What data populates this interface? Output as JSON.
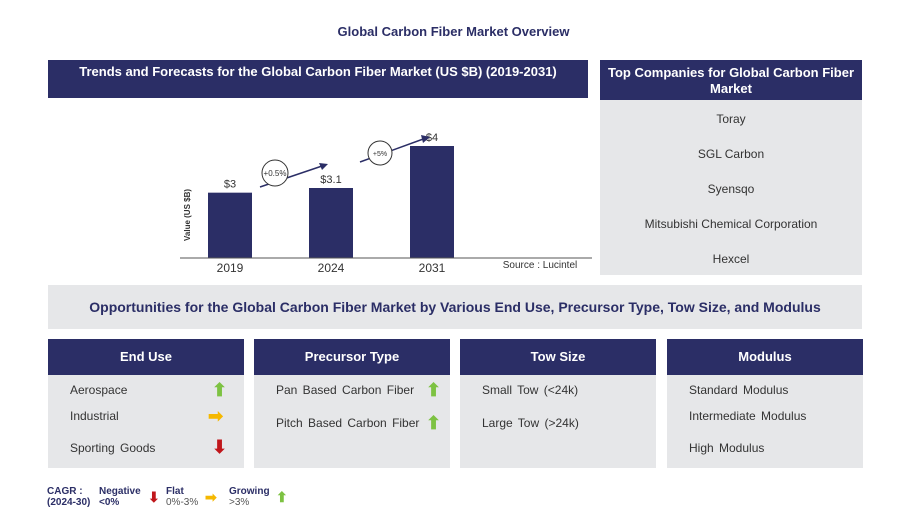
{
  "title": "Global Carbon Fiber Market Overview",
  "chart_header": "Trends and Forecasts for the Global Carbon Fiber Market (US $B) (2019-2031)",
  "chart_data": {
    "type": "bar",
    "categories": [
      "2019",
      "2024",
      "2031"
    ],
    "values": [
      3,
      3.1,
      4
    ],
    "data_labels": [
      "$3",
      "$3.1",
      "$4"
    ],
    "ylabel": "Value (US $B)",
    "ylim": [
      1.6,
      4.0
    ],
    "annotations": [
      "+0.5%",
      "+5%"
    ],
    "source": "Source : Lucintel"
  },
  "companies": {
    "header": "Top Companies for Global Carbon Fiber Market",
    "items": [
      "Toray",
      "SGL Carbon",
      "Syensqo",
      "Mitsubishi Chemical Corporation",
      "Hexcel"
    ]
  },
  "opportunities": "Opportunities for the Global Carbon Fiber Market by Various End Use, Precursor Type, Tow Size, and Modulus",
  "columns": [
    {
      "title": "End Use",
      "items": [
        {
          "label": "Aerospace",
          "trend": "growing"
        },
        {
          "label": "Industrial",
          "trend": "flat"
        },
        {
          "label": "Sporting Goods",
          "trend": "negative"
        }
      ]
    },
    {
      "title": "Precursor Type",
      "items": [
        {
          "label": "Pan Based Carbon Fiber",
          "trend": "growing"
        },
        {
          "label": "Pitch Based Carbon Fiber",
          "trend": "growing"
        }
      ]
    },
    {
      "title": "Tow Size",
      "items": [
        {
          "label": "Small Tow (<24k)"
        },
        {
          "label": "Large Tow (>24k)"
        }
      ]
    },
    {
      "title": "Modulus",
      "items": [
        {
          "label": "Standard Modulus"
        },
        {
          "label": "Intermediate Modulus"
        },
        {
          "label": "High Modulus"
        }
      ]
    }
  ],
  "legend": {
    "cagr": "CAGR :",
    "period": "(2024-30)",
    "negative": "Negative",
    "negative_range": "<0%",
    "flat": "Flat",
    "flat_range": "0%-3%",
    "growing": "Growing",
    "growing_range": ">3%"
  },
  "colors": {
    "navy": "#2b2e66",
    "growing": "#7dc242",
    "flat": "#f5b800",
    "negative": "#c0161b"
  }
}
